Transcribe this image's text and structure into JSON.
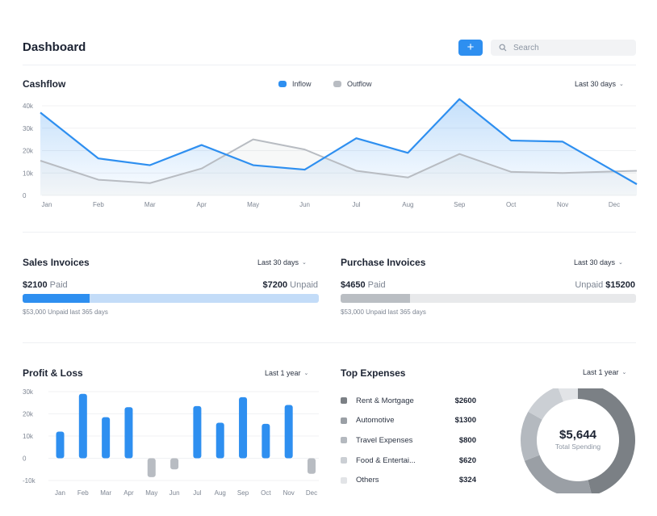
{
  "header": {
    "title": "Dashboard",
    "add_label": "+",
    "search_placeholder": "Search"
  },
  "cashflow": {
    "title": "Cashflow",
    "legend": {
      "inflow": "Inflow",
      "outflow": "Outflow"
    },
    "period": "Last 30 days"
  },
  "sales": {
    "title": "Sales Invoices",
    "period": "Last 30 days",
    "paid_amount": "$2100",
    "paid_label": "Paid",
    "unpaid_amount": "$7200",
    "unpaid_label": "Unpaid",
    "paid_fraction": 0.226,
    "note": "$53,000 Unpaid last 365 days"
  },
  "purchase": {
    "title": "Purchase Invoices",
    "period": "Last 30 days",
    "paid_amount": "$4650",
    "paid_label": "Paid",
    "unpaid_amount": "$15200",
    "unpaid_label": "Unpaid",
    "paid_fraction": 0.234,
    "note": "$53,000 Unpaid last 365 days"
  },
  "profit_loss": {
    "title": "Profit & Loss",
    "period": "Last 1 year"
  },
  "top_expenses": {
    "title": "Top Expenses",
    "period": "Last 1 year",
    "items": [
      {
        "name": "Rent & Mortgage",
        "value": "$2600",
        "color": "#7b8085"
      },
      {
        "name": "Automotive",
        "value": "$1300",
        "color": "#9a9fa5"
      },
      {
        "name": "Travel Expenses",
        "value": "$800",
        "color": "#b4b9bf"
      },
      {
        "name": "Food & Entertai...",
        "value": "$620",
        "color": "#cbcfd4"
      },
      {
        "name": "Others",
        "value": "$324",
        "color": "#e2e4e7"
      }
    ],
    "total": "$5,644",
    "total_label": "Total Spending"
  },
  "colors": {
    "accent": "#2e8ff0",
    "outflow": "#b8bcc2"
  },
  "chart_data": [
    {
      "type": "line",
      "title": "Cashflow",
      "categories": [
        "Jan",
        "Feb",
        "Mar",
        "Apr",
        "May",
        "Jun",
        "Jul",
        "Aug",
        "Sep",
        "Oct",
        "Nov",
        "Dec"
      ],
      "series": [
        {
          "name": "Inflow",
          "values": [
            37000,
            16500,
            13500,
            22500,
            13500,
            11500,
            25500,
            19000,
            43000,
            24500,
            24000,
            5000
          ]
        },
        {
          "name": "Outflow",
          "values": [
            15500,
            7000,
            5500,
            12000,
            25000,
            20500,
            11000,
            8000,
            18500,
            10500,
            10000,
            11000
          ]
        }
      ],
      "y_ticks": [
        "0",
        "10k",
        "20k",
        "30k",
        "40k"
      ],
      "ylim": [
        0,
        40000
      ],
      "grid": true,
      "legend_position": "top"
    },
    {
      "type": "bar",
      "title": "Profit & Loss",
      "categories": [
        "Jan",
        "Feb",
        "Mar",
        "Apr",
        "May",
        "Jun",
        "Jul",
        "Aug",
        "Sep",
        "Oct",
        "Nov",
        "Dec"
      ],
      "values": [
        12000,
        29000,
        18500,
        23000,
        -8500,
        -5000,
        23500,
        16000,
        27500,
        15500,
        24000,
        -7000
      ],
      "y_ticks": [
        "30k",
        "20k",
        "10k",
        "0",
        "-10k"
      ],
      "ylim": [
        -10000,
        30000
      ],
      "grid": true
    },
    {
      "type": "pie",
      "title": "Top Expenses",
      "categories": [
        "Rent & Mortgage",
        "Automotive",
        "Travel Expenses",
        "Food & Entertai...",
        "Others"
      ],
      "values": [
        2600,
        1300,
        800,
        620,
        324
      ]
    }
  ]
}
